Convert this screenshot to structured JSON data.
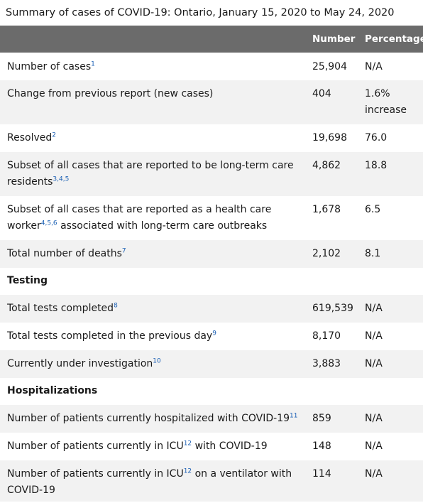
{
  "caption": "Summary of cases of COVID-19: Ontario, January 15, 2020 to May 24, 2020",
  "headers": {
    "label": "",
    "number": "Number",
    "percentage": "Percentage"
  },
  "rows": [
    {
      "label": "Number of cases",
      "sup": "1",
      "label_after": "",
      "number": "25,904",
      "percentage": "N/A"
    },
    {
      "label": "Change from previous report (new cases)",
      "sup": "",
      "label_after": "",
      "number": "404",
      "percentage": "1.6% increase"
    },
    {
      "label": "Resolved",
      "sup": "2",
      "label_after": "",
      "number": "19,698",
      "percentage": "76.0"
    },
    {
      "label": "Subset of all cases that are reported to be long-term care residents",
      "sup": "3,4,5",
      "label_after": "",
      "number": "4,862",
      "percentage": "18.8"
    },
    {
      "label": "Subset of all cases that are reported as a health care worker",
      "sup": "4,5,6",
      "label_after": " associated with long-term care outbreaks",
      "number": "1,678",
      "percentage": "6.5"
    },
    {
      "label": "Total number of deaths",
      "sup": "7",
      "label_after": "",
      "number": "2,102",
      "percentage": "8.1"
    }
  ],
  "testing": {
    "heading": "Testing",
    "rows": [
      {
        "label": "Total tests completed",
        "sup": "8",
        "label_after": "",
        "number": "619,539",
        "percentage": "N/A"
      },
      {
        "label": "Total tests completed in the previous day",
        "sup": "9",
        "label_after": "",
        "number": "8,170",
        "percentage": "N/A"
      },
      {
        "label": "Currently under investigation",
        "sup": "10",
        "label_after": "",
        "number": "3,883",
        "percentage": "N/A"
      }
    ]
  },
  "hospitalizations": {
    "heading": "Hospitalizations",
    "rows": [
      {
        "label": "Number of patients currently hospitalized with COVID-19",
        "sup": "11",
        "label_after": "",
        "number": "859",
        "percentage": "N/A"
      },
      {
        "label": "Number of patients currently in ICU",
        "sup": "12",
        "label_after": " with COVID-19",
        "number": "148",
        "percentage": "N/A"
      },
      {
        "label": "Number of patients currently in ICU",
        "sup": "12",
        "label_after": " on a ventilator with COVID-19",
        "number": "114",
        "percentage": "N/A"
      }
    ]
  }
}
